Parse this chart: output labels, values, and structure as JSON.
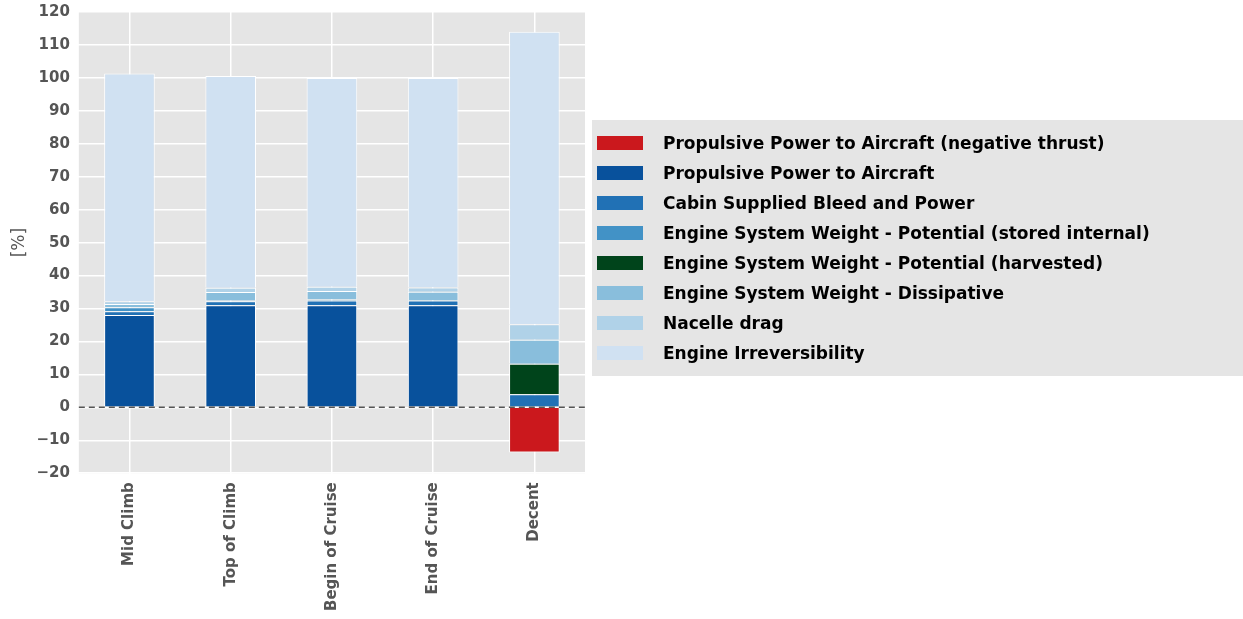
{
  "chart_data": {
    "type": "bar",
    "stacked": true,
    "ylabel": "[%]",
    "categories": [
      "Mid Climb",
      "Top of Climb",
      "Begin of Cruise",
      "End of Cruise",
      "Decent"
    ],
    "series": [
      {
        "name": "Propulsive Power to Aircraft (negative thrust)",
        "color": "#cb181d",
        "values": [
          null,
          null,
          null,
          null,
          -13.7
        ]
      },
      {
        "name": "Propulsive Power to Aircraft",
        "color": "#08519c",
        "values": [
          28,
          31,
          31,
          31,
          null
        ]
      },
      {
        "name": "Cabin Supplied Bleed and Power",
        "color": "#2171b5",
        "values": [
          1.2,
          1.2,
          1.4,
          1.4,
          4
        ]
      },
      {
        "name": "Engine System Weight - Potential (stored internal)",
        "color": "#4292c6",
        "values": [
          1.2,
          0.3,
          0.3,
          null,
          null
        ]
      },
      {
        "name": "Engine System Weight - Potential (harvested)",
        "color": "#00441b",
        "values": [
          null,
          null,
          null,
          null,
          9.2
        ]
      },
      {
        "name": "Engine System Weight - Dissipative",
        "color": "#89bedc",
        "values": [
          1,
          2.5,
          2.6,
          2.7,
          7.3
        ]
      },
      {
        "name": "Nacelle drag",
        "color": "#b0d2e8",
        "values": [
          0.8,
          1.3,
          1.3,
          1.3,
          4.7
        ]
      },
      {
        "name": "Engine Irreversibility",
        "color": "#d0e1f2",
        "values": [
          69.1,
          64.3,
          63.4,
          63.6,
          88.8
        ]
      }
    ],
    "ylim": [
      -20,
      120
    ],
    "yticks": [
      -20,
      -10,
      0,
      10,
      20,
      30,
      40,
      50,
      60,
      70,
      80,
      90,
      100,
      110,
      120
    ],
    "ref_lines": [
      {
        "axis": "y",
        "value": 0,
        "color": "#555555",
        "line_style": "dashed"
      }
    ],
    "grid": true,
    "legend": "right"
  }
}
